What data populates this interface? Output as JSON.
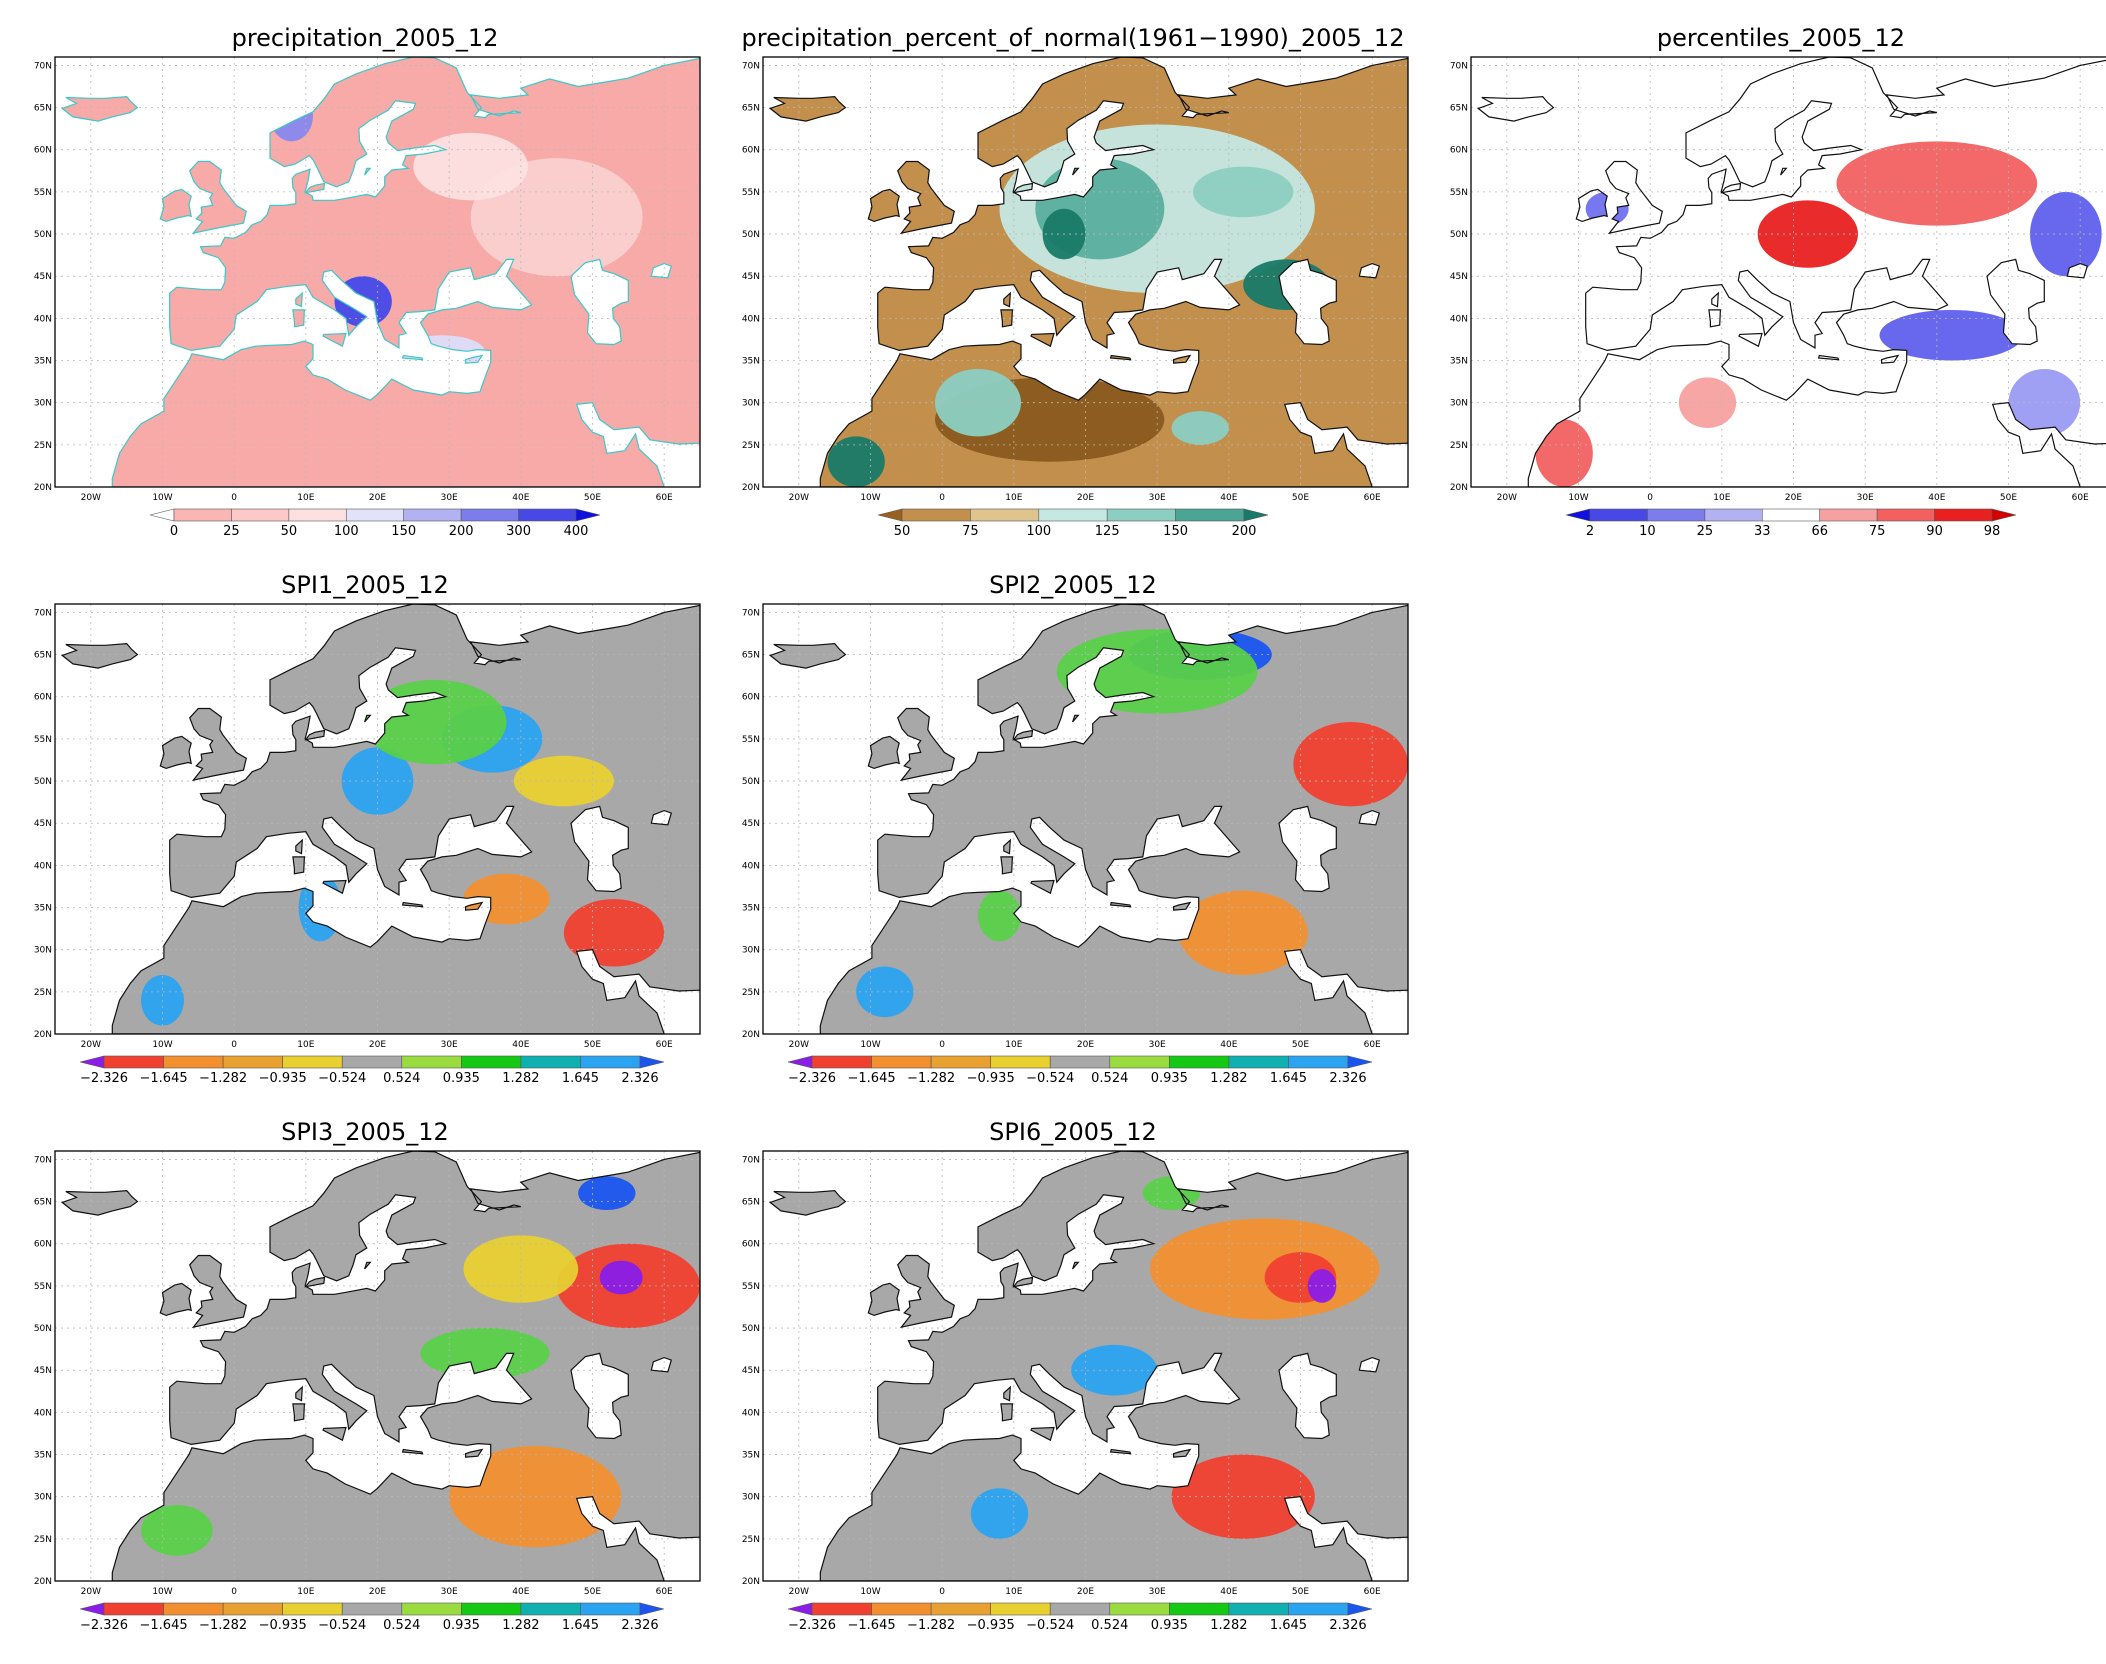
{
  "lon_ticks": [
    "20W",
    "10W",
    "0",
    "10E",
    "20E",
    "30E",
    "40E",
    "50E",
    "60E"
  ],
  "lat_ticks": [
    "70N",
    "65N",
    "60N",
    "55N",
    "50N",
    "45N",
    "40N",
    "35N",
    "30N",
    "25N",
    "20N"
  ],
  "colors": {
    "ocean": "#ffffff",
    "grid": "#b8b8b8",
    "frame": "#000000",
    "coast_default": "#111111",
    "coast_precip": "#3cc8c8"
  },
  "panels": [
    {
      "id": "precipitation",
      "title": "precipitation_2005_12",
      "base_fill": "#f7aaa8",
      "coast_color": "#3cc8c8",
      "features": [
        {
          "shape": "ellipse",
          "lon": 45,
          "lat": 52,
          "rx": 12,
          "ry": 7,
          "color": "#fbd0d0"
        },
        {
          "shape": "ellipse",
          "lon": 33,
          "lat": 58,
          "rx": 8,
          "ry": 4,
          "color": "#fde0e0"
        },
        {
          "shape": "ellipse",
          "lon": 18,
          "lat": 42,
          "rx": 4,
          "ry": 3,
          "color": "#4448e8"
        },
        {
          "shape": "ellipse",
          "lon": 8,
          "lat": 64,
          "rx": 3,
          "ry": 3,
          "color": "#8888ee"
        },
        {
          "shape": "ellipse",
          "lon": 29,
          "lat": 36,
          "rx": 6,
          "ry": 2,
          "color": "#ddddfa"
        }
      ],
      "colorbar": {
        "colors": [
          "#ffffff",
          "#fbb6b4",
          "#fcc8c8",
          "#fde0e0",
          "#e2e2fa",
          "#b2b2f2",
          "#7c7ced",
          "#4848e6",
          "#1010e0"
        ],
        "labels": [
          "0",
          "25",
          "50",
          "100",
          "150",
          "200",
          "300",
          "400"
        ]
      }
    },
    {
      "id": "percent-normal",
      "title": "precipitation_percent_of_normal(1961−1990)_2005_12",
      "base_fill": "#c28f4c",
      "coast_color": "#111111",
      "features": [
        {
          "shape": "ellipse",
          "lon": 30,
          "lat": 53,
          "rx": 22,
          "ry": 10,
          "color": "#c5e8e2"
        },
        {
          "shape": "ellipse",
          "lon": 22,
          "lat": 53,
          "rx": 9,
          "ry": 6,
          "color": "#5aaf9f"
        },
        {
          "shape": "ellipse",
          "lon": 17,
          "lat": 50,
          "rx": 3,
          "ry": 3,
          "color": "#187a68"
        },
        {
          "shape": "ellipse",
          "lon": 42,
          "lat": 55,
          "rx": 7,
          "ry": 3,
          "color": "#8ccfc2"
        },
        {
          "shape": "ellipse",
          "lon": 15,
          "lat": 28,
          "rx": 16,
          "ry": 5,
          "color": "#8a5a1e"
        },
        {
          "shape": "ellipse",
          "lon": 5,
          "lat": 30,
          "rx": 6,
          "ry": 4,
          "color": "#8ccfc2"
        },
        {
          "shape": "ellipse",
          "lon": -12,
          "lat": 23,
          "rx": 4,
          "ry": 3,
          "color": "#187a68"
        },
        {
          "shape": "ellipse",
          "lon": 48,
          "lat": 44,
          "rx": 6,
          "ry": 3,
          "color": "#187a68"
        },
        {
          "shape": "ellipse",
          "lon": 36,
          "lat": 27,
          "rx": 4,
          "ry": 2,
          "color": "#8ccfc2"
        }
      ],
      "colorbar": {
        "colors": [
          "#9a6020",
          "#c28f4c",
          "#e0c48e",
          "#c5e8e2",
          "#8ccfc2",
          "#4aa594",
          "#187a68"
        ],
        "labels": [
          "50",
          "75",
          "100",
          "125",
          "150",
          "200"
        ]
      }
    },
    {
      "id": "percentiles",
      "title": "percentiles_2005_12",
      "base_fill": "#ffffff",
      "coast_color": "#111111",
      "features": [
        {
          "shape": "ellipse",
          "lon": 40,
          "lat": 56,
          "rx": 14,
          "ry": 5,
          "color": "#f26060"
        },
        {
          "shape": "ellipse",
          "lon": 22,
          "lat": 50,
          "rx": 7,
          "ry": 4,
          "color": "#e82020"
        },
        {
          "shape": "ellipse",
          "lon": 42,
          "lat": 38,
          "rx": 10,
          "ry": 3,
          "color": "#6060ee"
        },
        {
          "shape": "ellipse",
          "lon": 58,
          "lat": 50,
          "rx": 5,
          "ry": 5,
          "color": "#6060ee"
        },
        {
          "shape": "ellipse",
          "lon": 55,
          "lat": 30,
          "rx": 5,
          "ry": 4,
          "color": "#9a9af2"
        },
        {
          "shape": "ellipse",
          "lon": -12,
          "lat": 24,
          "rx": 4,
          "ry": 4,
          "color": "#f26060"
        },
        {
          "shape": "ellipse",
          "lon": 8,
          "lat": 30,
          "rx": 4,
          "ry": 3,
          "color": "#f7a0a0"
        },
        {
          "shape": "ellipse",
          "lon": -6,
          "lat": 53,
          "rx": 3,
          "ry": 2,
          "color": "#7070ee"
        }
      ],
      "colorbar": {
        "colors": [
          "#1010e0",
          "#4848e6",
          "#7c7ced",
          "#b2b2f2",
          "#ffffff",
          "#f7a0a0",
          "#f26060",
          "#e82020",
          "#d40000"
        ],
        "labels": [
          "2",
          "10",
          "25",
          "33",
          "66",
          "75",
          "90",
          "98"
        ]
      }
    },
    {
      "id": "spi1",
      "title": "SPI1_2005_12",
      "base_fill": "#a8a8a8",
      "coast_color": "#111111",
      "features": [
        {
          "shape": "ellipse",
          "lon": 36,
          "lat": 55,
          "rx": 7,
          "ry": 4,
          "color": "#2aa3f0"
        },
        {
          "shape": "ellipse",
          "lon": 20,
          "lat": 50,
          "rx": 5,
          "ry": 4,
          "color": "#2aa3f0"
        },
        {
          "shape": "ellipse",
          "lon": 28,
          "lat": 57,
          "rx": 10,
          "ry": 5,
          "color": "#58d048"
        },
        {
          "shape": "ellipse",
          "lon": 53,
          "lat": 32,
          "rx": 7,
          "ry": 4,
          "color": "#f04030"
        },
        {
          "shape": "ellipse",
          "lon": 38,
          "lat": 36,
          "rx": 6,
          "ry": 3,
          "color": "#f29030"
        },
        {
          "shape": "ellipse",
          "lon": 46,
          "lat": 50,
          "rx": 7,
          "ry": 3,
          "color": "#e8d030"
        },
        {
          "shape": "ellipse",
          "lon": -10,
          "lat": 24,
          "rx": 3,
          "ry": 3,
          "color": "#2aa3f0"
        },
        {
          "shape": "ellipse",
          "lon": 12,
          "lat": 35,
          "rx": 3,
          "ry": 4,
          "color": "#2aa3f0"
        }
      ],
      "colorbar": {
        "colors": [
          "#8a1ee8",
          "#f04030",
          "#f29030",
          "#e8a030",
          "#e8d030",
          "#a8a8a8",
          "#9adb40",
          "#14c814",
          "#10b0b0",
          "#2aa3f0",
          "#1a55f0"
        ],
        "labels": [
          "−2.326",
          "−1.645",
          "−1.282",
          "−0.935",
          "−0.524",
          "0.524",
          "0.935",
          "1.282",
          "1.645",
          "2.326"
        ]
      }
    },
    {
      "id": "spi2",
      "title": "SPI2_2005_12",
      "base_fill": "#a8a8a8",
      "coast_color": "#111111",
      "features": [
        {
          "shape": "ellipse",
          "lon": 36,
          "lat": 65,
          "rx": 10,
          "ry": 3,
          "color": "#1a55f0"
        },
        {
          "shape": "ellipse",
          "lon": 30,
          "lat": 63,
          "rx": 14,
          "ry": 5,
          "color": "#58d048"
        },
        {
          "shape": "ellipse",
          "lon": 57,
          "lat": 52,
          "rx": 8,
          "ry": 5,
          "color": "#f04030"
        },
        {
          "shape": "ellipse",
          "lon": 42,
          "lat": 32,
          "rx": 9,
          "ry": 5,
          "color": "#f29030"
        },
        {
          "shape": "ellipse",
          "lon": -8,
          "lat": 25,
          "rx": 4,
          "ry": 3,
          "color": "#2aa3f0"
        },
        {
          "shape": "ellipse",
          "lon": 8,
          "lat": 34,
          "rx": 3,
          "ry": 3,
          "color": "#58d048"
        }
      ],
      "colorbar": {
        "colors": [
          "#8a1ee8",
          "#f04030",
          "#f29030",
          "#e8a030",
          "#e8d030",
          "#a8a8a8",
          "#9adb40",
          "#14c814",
          "#10b0b0",
          "#2aa3f0",
          "#1a55f0"
        ],
        "labels": [
          "−2.326",
          "−1.645",
          "−1.282",
          "−0.935",
          "−0.524",
          "0.524",
          "0.935",
          "1.282",
          "1.645",
          "2.326"
        ]
      }
    },
    {
      "id": "spi3",
      "title": "SPI3_2005_12",
      "base_fill": "#a8a8a8",
      "coast_color": "#111111",
      "features": [
        {
          "shape": "ellipse",
          "lon": 55,
          "lat": 55,
          "rx": 10,
          "ry": 5,
          "color": "#f04030"
        },
        {
          "shape": "ellipse",
          "lon": 54,
          "lat": 56,
          "rx": 3,
          "ry": 2,
          "color": "#8a1ee8"
        },
        {
          "shape": "ellipse",
          "lon": 40,
          "lat": 57,
          "rx": 8,
          "ry": 4,
          "color": "#e8d030"
        },
        {
          "shape": "ellipse",
          "lon": 35,
          "lat": 47,
          "rx": 9,
          "ry": 3,
          "color": "#58d048"
        },
        {
          "shape": "ellipse",
          "lon": 42,
          "lat": 30,
          "rx": 12,
          "ry": 6,
          "color": "#f29030"
        },
        {
          "shape": "ellipse",
          "lon": -8,
          "lat": 26,
          "rx": 5,
          "ry": 3,
          "color": "#58d048"
        },
        {
          "shape": "ellipse",
          "lon": 52,
          "lat": 66,
          "rx": 4,
          "ry": 2,
          "color": "#1a55f0"
        }
      ],
      "colorbar": {
        "colors": [
          "#8a1ee8",
          "#f04030",
          "#f29030",
          "#e8a030",
          "#e8d030",
          "#a8a8a8",
          "#9adb40",
          "#14c814",
          "#10b0b0",
          "#2aa3f0",
          "#1a55f0"
        ],
        "labels": [
          "−2.326",
          "−1.645",
          "−1.282",
          "−0.935",
          "−0.524",
          "0.524",
          "0.935",
          "1.282",
          "1.645",
          "2.326"
        ]
      }
    },
    {
      "id": "spi6",
      "title": "SPI6_2005_12",
      "base_fill": "#a8a8a8",
      "coast_color": "#111111",
      "features": [
        {
          "shape": "ellipse",
          "lon": 45,
          "lat": 57,
          "rx": 16,
          "ry": 6,
          "color": "#f29030"
        },
        {
          "shape": "ellipse",
          "lon": 50,
          "lat": 56,
          "rx": 5,
          "ry": 3,
          "color": "#f04030"
        },
        {
          "shape": "ellipse",
          "lon": 53,
          "lat": 55,
          "rx": 2,
          "ry": 2,
          "color": "#8a1ee8"
        },
        {
          "shape": "ellipse",
          "lon": 24,
          "lat": 45,
          "rx": 6,
          "ry": 3,
          "color": "#2aa3f0"
        },
        {
          "shape": "ellipse",
          "lon": 8,
          "lat": 28,
          "rx": 4,
          "ry": 3,
          "color": "#2aa3f0"
        },
        {
          "shape": "ellipse",
          "lon": 42,
          "lat": 30,
          "rx": 10,
          "ry": 5,
          "color": "#f04030"
        },
        {
          "shape": "ellipse",
          "lon": 32,
          "lat": 66,
          "rx": 4,
          "ry": 2,
          "color": "#58d048"
        }
      ],
      "colorbar": {
        "colors": [
          "#8a1ee8",
          "#f04030",
          "#f29030",
          "#e8a030",
          "#e8d030",
          "#a8a8a8",
          "#9adb40",
          "#14c814",
          "#10b0b0",
          "#2aa3f0",
          "#1a55f0"
        ],
        "labels": [
          "−2.326",
          "−1.645",
          "−1.282",
          "−0.935",
          "−0.524",
          "0.524",
          "0.935",
          "1.282",
          "1.645",
          "2.326"
        ]
      }
    }
  ]
}
